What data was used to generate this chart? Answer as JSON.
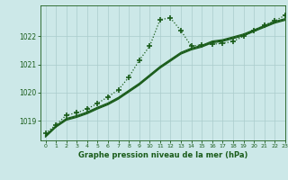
{
  "bg_color": "#cce8e8",
  "grid_color": "#aacccc",
  "line_color": "#1a5c1a",
  "xlabel": "Graphe pression niveau de la mer (hPa)",
  "ylim": [
    1018.3,
    1023.1
  ],
  "xlim": [
    -0.5,
    23
  ],
  "yticks": [
    1019,
    1020,
    1021,
    1022
  ],
  "xticks": [
    0,
    1,
    2,
    3,
    4,
    5,
    6,
    7,
    8,
    9,
    10,
    11,
    12,
    13,
    14,
    15,
    16,
    17,
    18,
    19,
    20,
    21,
    22,
    23
  ],
  "smooth1_x": [
    0,
    1,
    2,
    3,
    4,
    5,
    6,
    7,
    8,
    9,
    10,
    11,
    12,
    13,
    14,
    15,
    16,
    17,
    18,
    19,
    20,
    21,
    22,
    23
  ],
  "smooth1_y": [
    1018.45,
    1018.8,
    1019.05,
    1019.15,
    1019.28,
    1019.45,
    1019.6,
    1019.8,
    1020.05,
    1020.3,
    1020.6,
    1020.9,
    1021.15,
    1021.4,
    1021.55,
    1021.65,
    1021.8,
    1021.85,
    1021.95,
    1022.05,
    1022.2,
    1022.35,
    1022.5,
    1022.6
  ],
  "smooth2_x": [
    0,
    1,
    2,
    3,
    4,
    5,
    6,
    7,
    8,
    9,
    10,
    11,
    12,
    13,
    14,
    15,
    16,
    17,
    18,
    19,
    20,
    21,
    22,
    23
  ],
  "smooth2_y": [
    1018.48,
    1018.82,
    1019.08,
    1019.18,
    1019.31,
    1019.48,
    1019.63,
    1019.83,
    1020.08,
    1020.33,
    1020.63,
    1020.93,
    1021.18,
    1021.43,
    1021.58,
    1021.68,
    1021.83,
    1021.88,
    1021.98,
    1022.08,
    1022.23,
    1022.38,
    1022.53,
    1022.63
  ],
  "smooth3_x": [
    0,
    1,
    2,
    3,
    4,
    5,
    6,
    7,
    8,
    9,
    10,
    11,
    12,
    13,
    14,
    15,
    16,
    17,
    18,
    19,
    20,
    21,
    22,
    23
  ],
  "smooth3_y": [
    1018.42,
    1018.77,
    1019.02,
    1019.12,
    1019.25,
    1019.42,
    1019.57,
    1019.77,
    1020.02,
    1020.27,
    1020.57,
    1020.87,
    1021.12,
    1021.37,
    1021.52,
    1021.62,
    1021.77,
    1021.82,
    1021.92,
    1022.02,
    1022.17,
    1022.32,
    1022.47,
    1022.57
  ],
  "main_x": [
    0,
    1,
    2,
    3,
    4,
    5,
    6,
    7,
    8,
    9,
    10,
    11,
    12,
    13,
    14,
    15,
    16,
    17,
    18,
    19,
    20,
    21,
    22,
    23
  ],
  "main_y": [
    1018.55,
    1018.85,
    1019.2,
    1019.28,
    1019.42,
    1019.62,
    1019.85,
    1020.1,
    1020.55,
    1021.15,
    1021.65,
    1022.6,
    1022.65,
    1022.2,
    1021.65,
    1021.7,
    1021.72,
    1021.75,
    1021.82,
    1022.0,
    1022.2,
    1022.4,
    1022.55,
    1022.75
  ]
}
